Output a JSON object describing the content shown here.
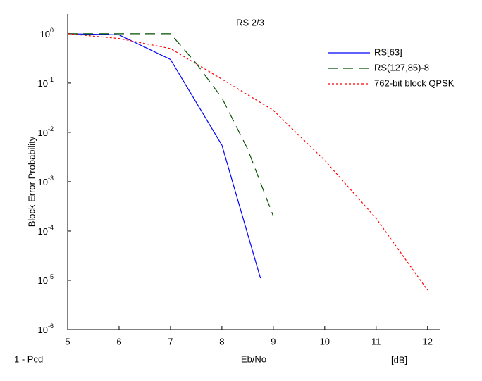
{
  "chart_data": {
    "type": "line",
    "title": "RS 2/3",
    "x_label": "Eb/No",
    "y_label": "Block Error Probability",
    "annotations": [
      "1 - Pcd",
      "[dB]"
    ],
    "log_y": true,
    "grid": false,
    "legend": "upper right",
    "xlim": [
      5,
      12.25
    ],
    "xticks": [
      5,
      6,
      7,
      8,
      9,
      10,
      11,
      12
    ],
    "ylim": [
      1e-06,
      2.5
    ],
    "yticks": [
      {
        "value": 1,
        "label": "10",
        "exponent": "0"
      },
      {
        "value": 0.1,
        "label": "10",
        "exponent": "-1"
      },
      {
        "value": 0.01,
        "label": "10",
        "exponent": "-2"
      },
      {
        "value": 0.001,
        "label": "10",
        "exponent": "-3"
      },
      {
        "value": 0.0001,
        "label": "10",
        "exponent": "-4"
      },
      {
        "value": 1e-05,
        "label": "10",
        "exponent": "-5"
      },
      {
        "value": 1e-06,
        "label": "10",
        "exponent": "-6"
      }
    ],
    "series": [
      {
        "name": "RS[63]",
        "color": "#0000ff",
        "dash": "solid",
        "x": [
          5,
          6,
          7,
          8,
          8.75
        ],
        "values": [
          1,
          0.95,
          0.3,
          0.0055,
          1.1e-05
        ]
      },
      {
        "name": "RS(127,85)-8",
        "color": "#005000",
        "dash": "dashed",
        "x": [
          5,
          6,
          7,
          7.5,
          8,
          8.5,
          9
        ],
        "values": [
          1,
          1,
          1,
          0.25,
          0.05,
          0.0046,
          0.0002
        ]
      },
      {
        "name": "762-bit block QPSK",
        "color": "#ff0000",
        "dash": "dotted",
        "x": [
          5,
          6,
          7,
          8,
          9,
          10,
          11,
          12
        ],
        "values": [
          1,
          0.8,
          0.5,
          0.12,
          0.028,
          0.0027,
          0.00018,
          6.3e-06
        ]
      }
    ]
  }
}
